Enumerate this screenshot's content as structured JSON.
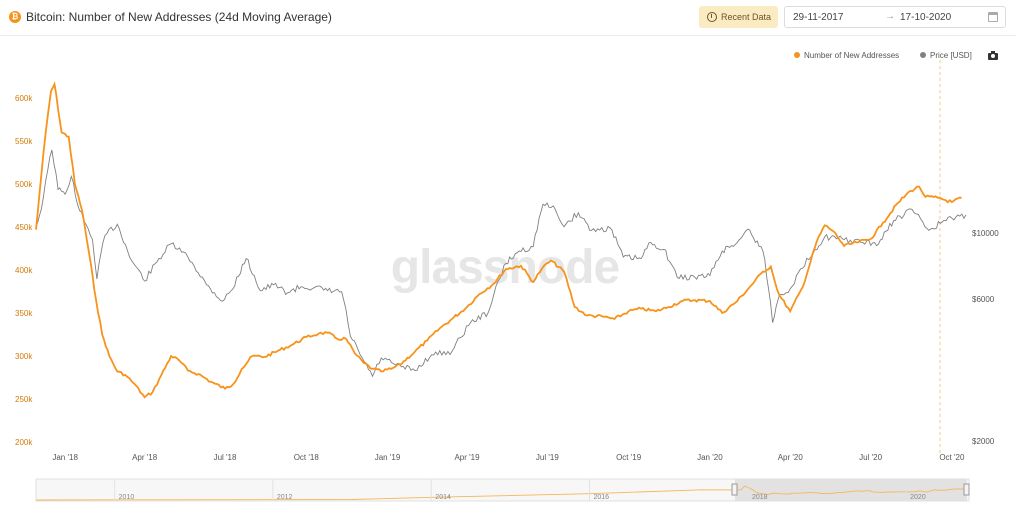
{
  "header": {
    "title": "Bitcoin: Number of New Addresses (24d Moving Average)",
    "coin_symbol": "₿",
    "recent_label": "Recent Data",
    "date_start": "29-11-2017",
    "date_arrow": "→",
    "date_end": "17-10-2020"
  },
  "legend": {
    "addresses_label": "Number of New Addresses",
    "price_label": "Price [USD]"
  },
  "icons": [
    "bitcoin-icon",
    "clock-icon",
    "calendar-icon",
    "camera-icon"
  ],
  "watermark": "glassnode",
  "chart_data": {
    "type": "line",
    "x_range": [
      "2017-11-29",
      "2020-10-17"
    ],
    "x_ticks": [
      "Jan '18",
      "Apr '18",
      "Jul '18",
      "Oct '18",
      "Jan '19",
      "Apr '19",
      "Jul '19",
      "Oct '19",
      "Jan '20",
      "Apr '20",
      "Jul '20",
      "Oct '20"
    ],
    "y_left": {
      "ticks": [
        "600k",
        "550k",
        "500k",
        "450k",
        "400k",
        "350k",
        "300k",
        "250k",
        "200k"
      ],
      "range": [
        200000,
        630000
      ]
    },
    "y_right": {
      "ticks": [
        "$10000",
        "$6000",
        "$2000"
      ],
      "scale": "log"
    },
    "colors": {
      "addresses": "#f7931a",
      "price": "#808080"
    },
    "series": [
      {
        "name": "Number of New Addresses",
        "axis": "left",
        "points": [
          [
            "2017-11-29",
            447000
          ],
          [
            "2017-12-05",
            510000
          ],
          [
            "2017-12-10",
            560000
          ],
          [
            "2017-12-16",
            608000
          ],
          [
            "2017-12-20",
            616000
          ],
          [
            "2017-12-28",
            560000
          ],
          [
            "2018-01-05",
            555000
          ],
          [
            "2018-01-12",
            500000
          ],
          [
            "2018-01-20",
            470000
          ],
          [
            "2018-01-28",
            420000
          ],
          [
            "2018-02-05",
            365000
          ],
          [
            "2018-02-12",
            325000
          ],
          [
            "2018-02-20",
            300000
          ],
          [
            "2018-03-01",
            282000
          ],
          [
            "2018-03-10",
            278000
          ],
          [
            "2018-03-20",
            268000
          ],
          [
            "2018-04-01",
            252000
          ],
          [
            "2018-04-10",
            258000
          ],
          [
            "2018-04-20",
            278000
          ],
          [
            "2018-05-01",
            300000
          ],
          [
            "2018-05-10",
            295000
          ],
          [
            "2018-05-20",
            283000
          ],
          [
            "2018-06-01",
            279000
          ],
          [
            "2018-06-15",
            270000
          ],
          [
            "2018-07-01",
            262000
          ],
          [
            "2018-07-10",
            267000
          ],
          [
            "2018-07-20",
            285000
          ],
          [
            "2018-08-01",
            300000
          ],
          [
            "2018-08-15",
            299000
          ],
          [
            "2018-09-01",
            307000
          ],
          [
            "2018-09-15",
            313000
          ],
          [
            "2018-10-01",
            322000
          ],
          [
            "2018-10-15",
            326000
          ],
          [
            "2018-10-25",
            327000
          ],
          [
            "2018-11-05",
            320000
          ],
          [
            "2018-11-15",
            320000
          ],
          [
            "2018-11-25",
            303000
          ],
          [
            "2018-12-05",
            292000
          ],
          [
            "2018-12-15",
            285000
          ],
          [
            "2018-12-25",
            282000
          ],
          [
            "2019-01-05",
            285000
          ],
          [
            "2019-01-15",
            290000
          ],
          [
            "2019-02-01",
            305000
          ],
          [
            "2019-02-15",
            318000
          ],
          [
            "2019-03-01",
            332000
          ],
          [
            "2019-03-15",
            343000
          ],
          [
            "2019-04-01",
            357000
          ],
          [
            "2019-04-15",
            372000
          ],
          [
            "2019-05-01",
            384000
          ],
          [
            "2019-05-15",
            401000
          ],
          [
            "2019-06-01",
            405000
          ],
          [
            "2019-06-15",
            386000
          ],
          [
            "2019-06-25",
            402000
          ],
          [
            "2019-07-05",
            411000
          ],
          [
            "2019-07-20",
            398000
          ],
          [
            "2019-08-01",
            357000
          ],
          [
            "2019-08-15",
            347000
          ],
          [
            "2019-09-01",
            346000
          ],
          [
            "2019-09-15",
            343000
          ],
          [
            "2019-10-01",
            352000
          ],
          [
            "2019-10-15",
            355000
          ],
          [
            "2019-11-01",
            352000
          ],
          [
            "2019-11-15",
            357000
          ],
          [
            "2019-12-01",
            364000
          ],
          [
            "2019-12-15",
            365000
          ],
          [
            "2020-01-01",
            364000
          ],
          [
            "2020-01-15",
            350000
          ],
          [
            "2020-02-01",
            364000
          ],
          [
            "2020-02-15",
            380000
          ],
          [
            "2020-03-01",
            398000
          ],
          [
            "2020-03-10",
            404000
          ],
          [
            "2020-03-15",
            385000
          ],
          [
            "2020-03-20",
            370000
          ],
          [
            "2020-04-01",
            352000
          ],
          [
            "2020-04-15",
            380000
          ],
          [
            "2020-05-01",
            433000
          ],
          [
            "2020-05-10",
            452000
          ],
          [
            "2020-05-20",
            445000
          ],
          [
            "2020-06-01",
            428000
          ],
          [
            "2020-06-15",
            432000
          ],
          [
            "2020-07-01",
            436000
          ],
          [
            "2020-07-15",
            455000
          ],
          [
            "2020-08-01",
            478000
          ],
          [
            "2020-08-15",
            492000
          ],
          [
            "2020-08-25",
            497000
          ],
          [
            "2020-09-01",
            485000
          ],
          [
            "2020-09-15",
            484000
          ],
          [
            "2020-10-01",
            479000
          ],
          [
            "2020-10-12",
            484000
          ]
        ]
      },
      {
        "name": "Price [USD]",
        "axis": "right",
        "points": [
          [
            "2017-11-29",
            10500
          ],
          [
            "2017-12-05",
            12000
          ],
          [
            "2017-12-10",
            15000
          ],
          [
            "2017-12-17",
            19000
          ],
          [
            "2017-12-24",
            14000
          ],
          [
            "2018-01-01",
            13500
          ],
          [
            "2018-01-08",
            15500
          ],
          [
            "2018-01-15",
            12500
          ],
          [
            "2018-01-22",
            11000
          ],
          [
            "2018-02-01",
            9500
          ],
          [
            "2018-02-06",
            7000
          ],
          [
            "2018-02-15",
            9800
          ],
          [
            "2018-03-01",
            10700
          ],
          [
            "2018-03-15",
            8300
          ],
          [
            "2018-04-01",
            6900
          ],
          [
            "2018-04-15",
            8000
          ],
          [
            "2018-05-01",
            9200
          ],
          [
            "2018-05-20",
            8300
          ],
          [
            "2018-06-10",
            6700
          ],
          [
            "2018-06-28",
            5900
          ],
          [
            "2018-07-10",
            6500
          ],
          [
            "2018-07-25",
            8200
          ],
          [
            "2018-08-10",
            6400
          ],
          [
            "2018-08-25",
            6700
          ],
          [
            "2018-09-10",
            6300
          ],
          [
            "2018-09-25",
            6600
          ],
          [
            "2018-10-10",
            6550
          ],
          [
            "2018-10-25",
            6400
          ],
          [
            "2018-11-10",
            6350
          ],
          [
            "2018-11-20",
            4500
          ],
          [
            "2018-12-01",
            3900
          ],
          [
            "2018-12-15",
            3300
          ],
          [
            "2018-12-25",
            3800
          ],
          [
            "2019-01-10",
            3600
          ],
          [
            "2019-02-01",
            3450
          ],
          [
            "2019-02-20",
            3900
          ],
          [
            "2019-03-15",
            4000
          ],
          [
            "2019-04-05",
            5000
          ],
          [
            "2019-04-25",
            5400
          ],
          [
            "2019-05-15",
            7900
          ],
          [
            "2019-05-30",
            8700
          ],
          [
            "2019-06-15",
            9000
          ],
          [
            "2019-06-26",
            12500
          ],
          [
            "2019-07-10",
            12000
          ],
          [
            "2019-07-20",
            10500
          ],
          [
            "2019-08-05",
            11700
          ],
          [
            "2019-08-20",
            10200
          ],
          [
            "2019-09-10",
            10400
          ],
          [
            "2019-09-25",
            8300
          ],
          [
            "2019-10-15",
            8200
          ],
          [
            "2019-10-26",
            9300
          ],
          [
            "2019-11-10",
            8800
          ],
          [
            "2019-11-25",
            7100
          ],
          [
            "2019-12-15",
            7100
          ],
          [
            "2020-01-01",
            7200
          ],
          [
            "2020-01-15",
            8700
          ],
          [
            "2020-02-01",
            9300
          ],
          [
            "2020-02-13",
            10300
          ],
          [
            "2020-03-01",
            8700
          ],
          [
            "2020-03-12",
            5000
          ],
          [
            "2020-03-20",
            6200
          ],
          [
            "2020-04-01",
            6500
          ],
          [
            "2020-04-29",
            8800
          ],
          [
            "2020-05-10",
            9700
          ],
          [
            "2020-06-01",
            9500
          ],
          [
            "2020-06-20",
            9300
          ],
          [
            "2020-07-10",
            9200
          ],
          [
            "2020-07-27",
            11000
          ],
          [
            "2020-08-17",
            12000
          ],
          [
            "2020-09-05",
            10200
          ],
          [
            "2020-09-20",
            10900
          ],
          [
            "2020-10-10",
            11400
          ],
          [
            "2020-10-17",
            11500
          ]
        ]
      }
    ],
    "navigator": {
      "x_ticks": [
        "2010",
        "2012",
        "2014",
        "2016",
        "2018",
        "2020"
      ]
    }
  }
}
